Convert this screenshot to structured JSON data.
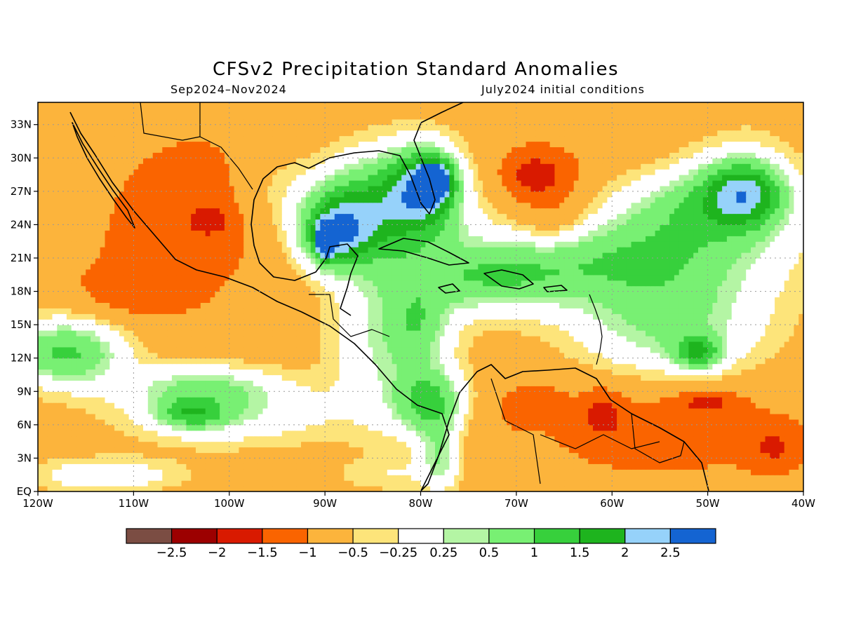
{
  "title": "CFSv2 Precipitation Standard Anomalies",
  "subtitle_left": "Sep2024–Nov2024",
  "subtitle_right": "July2024 initial conditions",
  "map": {
    "lon_range": [
      -120,
      -40
    ],
    "lat_range": [
      0,
      35
    ],
    "x_ticks": [
      {
        "lon": -120,
        "label": "120W"
      },
      {
        "lon": -110,
        "label": "110W"
      },
      {
        "lon": -100,
        "label": "100W"
      },
      {
        "lon": -90,
        "label": "90W"
      },
      {
        "lon": -80,
        "label": "80W"
      },
      {
        "lon": -70,
        "label": "70W"
      },
      {
        "lon": -60,
        "label": "60W"
      },
      {
        "lon": -50,
        "label": "50W"
      },
      {
        "lon": -40,
        "label": "40W"
      }
    ],
    "y_ticks": [
      {
        "lat": 0,
        "label": "EQ"
      },
      {
        "lat": 3,
        "label": "3N"
      },
      {
        "lat": 6,
        "label": "6N"
      },
      {
        "lat": 9,
        "label": "9N"
      },
      {
        "lat": 12,
        "label": "12N"
      },
      {
        "lat": 15,
        "label": "15N"
      },
      {
        "lat": 18,
        "label": "18N"
      },
      {
        "lat": 21,
        "label": "21N"
      },
      {
        "lat": 24,
        "label": "24N"
      },
      {
        "lat": 27,
        "label": "27N"
      },
      {
        "lat": 30,
        "label": "30N"
      },
      {
        "lat": 33,
        "label": "33N"
      }
    ],
    "grid": true
  },
  "colorbar": {
    "colors": [
      "#7b4d43",
      "#9c0000",
      "#d91a00",
      "#fa6400",
      "#fcb43c",
      "#fde47a",
      "#ffffff",
      "#b4f5a4",
      "#78f073",
      "#37d03c",
      "#1eb41e",
      "#96d2fa",
      "#1464d2"
    ],
    "labels": [
      "−2.5",
      "−2",
      "−1.5",
      "−1",
      "−0.5",
      "−0.25",
      "0.25",
      "0.5",
      "1",
      "1.5",
      "2",
      "2.5"
    ]
  },
  "anomaly_field": {
    "background": -0.75,
    "features": [
      {
        "lon": -117,
        "lat": 12.5,
        "rx": 6,
        "ry": 3,
        "v": 1.3
      },
      {
        "lon": -100,
        "lat": 7,
        "rx": 11,
        "ry": 2.8,
        "v": 0.3
      },
      {
        "lon": -103,
        "lat": 9.5,
        "rx": 8,
        "ry": 2,
        "v": 0.4
      },
      {
        "lon": -104,
        "lat": 7,
        "rx": 3.5,
        "ry": 1.4,
        "v": 0.7
      },
      {
        "lon": -112,
        "lat": 18,
        "rx": 5,
        "ry": 2.5,
        "v": -1.1
      },
      {
        "lon": -107,
        "lat": 20,
        "rx": 6,
        "ry": 5,
        "v": -1.1
      },
      {
        "lon": -103,
        "lat": 26,
        "rx": 11,
        "ry": 8,
        "v": -1.2
      },
      {
        "lon": -102,
        "lat": 24.5,
        "rx": 2,
        "ry": 1.3,
        "v": -1.6
      },
      {
        "lon": -96,
        "lat": 28,
        "rx": 3.5,
        "ry": 4,
        "v": -0.4
      },
      {
        "lon": -88,
        "lat": 25,
        "rx": 6,
        "ry": 4,
        "v": 0.5
      },
      {
        "lon": -83,
        "lat": 26,
        "rx": 7,
        "ry": 5,
        "v": 1.0
      },
      {
        "lon": -89,
        "lat": 23,
        "rx": 3.5,
        "ry": 3,
        "v": 1.4
      },
      {
        "lon": -90,
        "lat": 22.5,
        "rx": 0.8,
        "ry": 1.5,
        "v": 2.2
      },
      {
        "lon": -78.5,
        "lat": 28,
        "rx": 1.6,
        "ry": 1.6,
        "v": 2.1
      },
      {
        "lon": -79.5,
        "lat": 27.5,
        "rx": 3.5,
        "ry": 3.5,
        "v": 1.6
      },
      {
        "lon": -83,
        "lat": 14,
        "rx": 6,
        "ry": 8,
        "v": 0.5
      },
      {
        "lon": -79,
        "lat": 8,
        "rx": 3.5,
        "ry": 3,
        "v": 1.1
      },
      {
        "lon": -80,
        "lat": 15,
        "rx": 3,
        "ry": 3,
        "v": 0.1
      },
      {
        "lon": -73,
        "lat": 19,
        "rx": 8,
        "ry": 3,
        "v": 0.5
      },
      {
        "lon": -60,
        "lat": 21,
        "rx": 16,
        "ry": 4,
        "v": 0.9
      },
      {
        "lon": -50,
        "lat": 26,
        "rx": 9,
        "ry": 4,
        "v": 1.0
      },
      {
        "lon": -46,
        "lat": 27,
        "rx": 4,
        "ry": 3,
        "v": 1.4
      },
      {
        "lon": -54,
        "lat": 15,
        "rx": 10,
        "ry": 5,
        "v": 0.7
      },
      {
        "lon": -51,
        "lat": 12.5,
        "rx": 2.5,
        "ry": 1.5,
        "v": 1.1
      },
      {
        "lon": -67,
        "lat": 28,
        "rx": 6.5,
        "ry": 4,
        "v": -1.2
      },
      {
        "lon": -68,
        "lat": 28.5,
        "rx": 3,
        "ry": 1.8,
        "v": -1.6
      },
      {
        "lon": -66,
        "lat": 24,
        "rx": 4,
        "ry": 2.5,
        "v": -1.4
      },
      {
        "lon": -55,
        "lat": 29,
        "rx": 4,
        "ry": 3,
        "v": -1.0
      },
      {
        "lon": -45,
        "lat": 33,
        "rx": 6,
        "ry": 2.5,
        "v": -0.6
      },
      {
        "lon": -55,
        "lat": 6,
        "rx": 14,
        "ry": 5,
        "v": -1.3
      },
      {
        "lon": -61,
        "lat": 7,
        "rx": 2,
        "ry": 2,
        "v": -1.6
      },
      {
        "lon": -50,
        "lat": 8,
        "rx": 3,
        "ry": 1,
        "v": -1.6
      },
      {
        "lon": -43,
        "lat": 4,
        "rx": 3,
        "ry": 2,
        "v": -1.5
      },
      {
        "lon": -68,
        "lat": 8,
        "rx": 3,
        "ry": 1.5,
        "v": -1.3
      },
      {
        "lon": -72,
        "lat": 4,
        "rx": 3,
        "ry": 5,
        "v": -0.9
      },
      {
        "lon": -78,
        "lat": 3,
        "rx": 2,
        "ry": 3,
        "v": 0.4
      },
      {
        "lon": -83,
        "lat": 1.5,
        "rx": 6,
        "ry": 1.5,
        "v": -0.3
      },
      {
        "lon": -113,
        "lat": 1.5,
        "rx": 8,
        "ry": 1.5,
        "v": 0.2
      }
    ]
  }
}
